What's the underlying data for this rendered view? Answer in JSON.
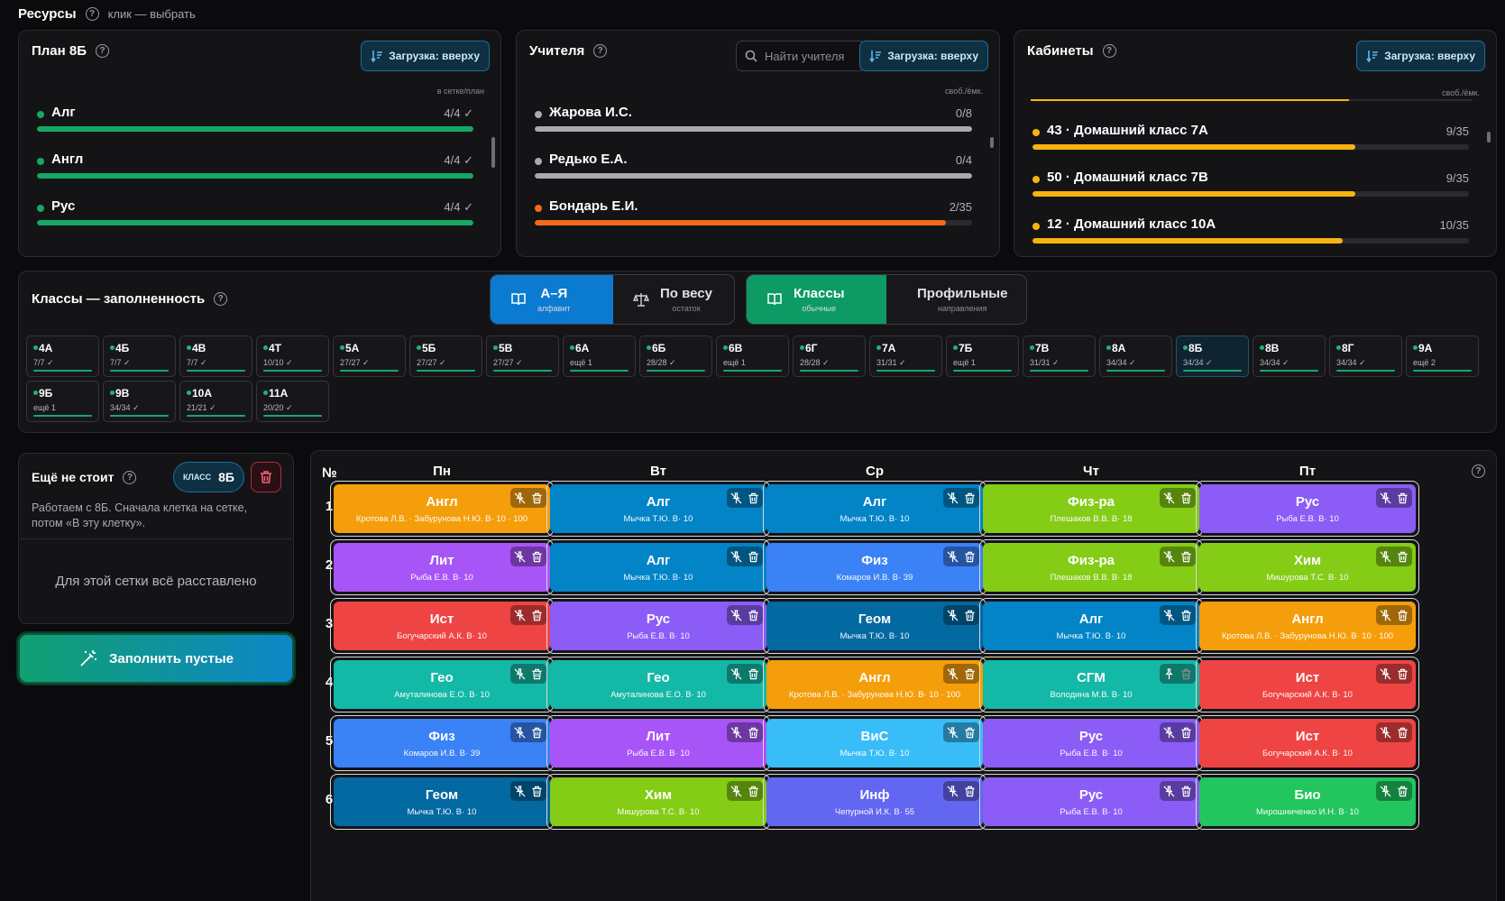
{
  "header": {
    "title": "Ресурсы",
    "hint": "клик — выбрать"
  },
  "load_label": "Загрузка: вверху",
  "plan": {
    "title": "План 8Б",
    "col": "в сетке/план",
    "items": [
      {
        "name": "Алг",
        "value": "4/4 ✓",
        "pct": 100,
        "color": "#15a865"
      },
      {
        "name": "Англ",
        "value": "4/4 ✓",
        "pct": 100,
        "color": "#15a865"
      },
      {
        "name": "Рус",
        "value": "4/4 ✓",
        "pct": 100,
        "color": "#15a865"
      }
    ]
  },
  "teachers": {
    "title": "Учителя",
    "search_placeholder": "Найти учителя",
    "col": "своб./ёмк.",
    "items": [
      {
        "name": "Жарова И.С.",
        "value": "0/8",
        "pct": 100,
        "color": "#a9a9b0"
      },
      {
        "name": "Редько Е.А.",
        "value": "0/4",
        "pct": 100,
        "color": "#a9a9b0"
      },
      {
        "name": "Бондарь Е.И.",
        "value": "2/35",
        "pct": 94,
        "color": "#f56a1a"
      }
    ]
  },
  "rooms": {
    "title": "Кабинеты",
    "col": "своб./ёмк.",
    "items": [
      {
        "name": "43 · Домашний класс 7А",
        "value": "9/35",
        "pct": 74,
        "color": "#f8b40e"
      },
      {
        "name": "50 · Домашний класс 7В",
        "value": "9/35",
        "pct": 74,
        "color": "#f8b40e"
      },
      {
        "name": "12 · Домашний класс 10А",
        "value": "10/35",
        "pct": 71,
        "color": "#f8b40e"
      }
    ]
  },
  "classes": {
    "title": "Классы — заполненность",
    "sort": [
      {
        "label": "А–Я",
        "sub": "алфавит",
        "active": true
      },
      {
        "label": "По весу",
        "sub": "остаток",
        "active": false
      }
    ],
    "filter": [
      {
        "label": "Классы",
        "sub": "обычные",
        "active": true
      },
      {
        "label": "Профильные",
        "sub": "направления",
        "active": false
      }
    ],
    "cards": [
      {
        "name": "4А",
        "stat": "7/7 ✓"
      },
      {
        "name": "4Б",
        "stat": "7/7 ✓"
      },
      {
        "name": "4В",
        "stat": "7/7 ✓"
      },
      {
        "name": "4Т",
        "stat": "10/10 ✓"
      },
      {
        "name": "5А",
        "stat": "27/27 ✓"
      },
      {
        "name": "5Б",
        "stat": "27/27 ✓"
      },
      {
        "name": "5В",
        "stat": "27/27 ✓"
      },
      {
        "name": "6А",
        "stat": "ещё 1"
      },
      {
        "name": "6Б",
        "stat": "28/28 ✓"
      },
      {
        "name": "6В",
        "stat": "ещё 1"
      },
      {
        "name": "6Г",
        "stat": "28/28 ✓"
      },
      {
        "name": "7А",
        "stat": "31/31 ✓"
      },
      {
        "name": "7Б",
        "stat": "ещё 1"
      },
      {
        "name": "7В",
        "stat": "31/31 ✓"
      },
      {
        "name": "8А",
        "stat": "34/34 ✓"
      },
      {
        "name": "8Б",
        "stat": "34/34 ✓",
        "selected": true
      },
      {
        "name": "8В",
        "stat": "34/34 ✓"
      },
      {
        "name": "8Г",
        "stat": "34/34 ✓"
      },
      {
        "name": "9А",
        "stat": "ещё 2"
      },
      {
        "name": "9Б",
        "stat": "ещё 1"
      },
      {
        "name": "9В",
        "stat": "34/34 ✓"
      },
      {
        "name": "10А",
        "stat": "21/21 ✓"
      },
      {
        "name": "11А",
        "stat": "20/20 ✓"
      }
    ]
  },
  "unplaced": {
    "title": "Ещё не стоит",
    "badge_key": "КЛАСС",
    "badge_value": "8Б",
    "desc": "Работаем с 8Б. Сначала клетка на сетке, потом «В эту клетку».",
    "empty": "Для этой сетки всё расставлено"
  },
  "fill_button": "Заполнить пустые",
  "grid": {
    "num": "№",
    "days": [
      "Пн",
      "Вт",
      "Ср",
      "Чт",
      "Пт"
    ],
    "rows": [
      "1",
      "2",
      "3",
      "4",
      "5",
      "6"
    ],
    "cells": [
      [
        {
          "s": "Англ",
          "t": "Кротова Л.В. · Забурунова Н.Ю. В· 10 · 100",
          "c": "#f59e0b"
        },
        {
          "s": "Алг",
          "t": "Мычка Т.Ю. В· 10",
          "c": "#0284c7"
        },
        {
          "s": "Алг",
          "t": "Мычка Т.Ю. В· 10",
          "c": "#0284c7"
        },
        {
          "s": "Физ-ра",
          "t": "Плешаков В.В. В· 18",
          "c": "#84cc16"
        },
        {
          "s": "Рус",
          "t": "Рыба Е.В. В· 10",
          "c": "#8b5cf6"
        }
      ],
      [
        {
          "s": "Лит",
          "t": "Рыба Е.В. В· 10",
          "c": "#a855f7"
        },
        {
          "s": "Алг",
          "t": "Мычка Т.Ю. В· 10",
          "c": "#0284c7"
        },
        {
          "s": "Физ",
          "t": "Комаров И.В. В· 39",
          "c": "#3b82f6"
        },
        {
          "s": "Физ-ра",
          "t": "Плешаков В.В. В· 18",
          "c": "#84cc16"
        },
        {
          "s": "Хим",
          "t": "Мишурова Т.С. В· 10",
          "c": "#84cc16"
        }
      ],
      [
        {
          "s": "Ист",
          "t": "Богучарский А.К. В· 10",
          "c": "#ef4444"
        },
        {
          "s": "Рус",
          "t": "Рыба Е.В. В· 10",
          "c": "#8b5cf6"
        },
        {
          "s": "Геом",
          "t": "Мычка Т.Ю. В· 10",
          "c": "#0369a1"
        },
        {
          "s": "Алг",
          "t": "Мычка Т.Ю. В· 10",
          "c": "#0284c7"
        },
        {
          "s": "Англ",
          "t": "Кротова Л.В. · Забурунова Н.Ю. В· 10 · 100",
          "c": "#f59e0b"
        }
      ],
      [
        {
          "s": "Гео",
          "t": "Амуталинова Е.О. В· 10",
          "c": "#14b8a6"
        },
        {
          "s": "Гео",
          "t": "Амуталинова Е.О. В· 10",
          "c": "#14b8a6"
        },
        {
          "s": "Англ",
          "t": "Кротова Л.В. · Забурунова Н.Ю. В· 10 · 100",
          "c": "#f59e0b"
        },
        {
          "s": "СГМ",
          "t": "Володина М.В. В· 10",
          "c": "#14b8a6",
          "pinned": true
        },
        {
          "s": "Ист",
          "t": "Богучарский А.К. В· 10",
          "c": "#ef4444"
        }
      ],
      [
        {
          "s": "Физ",
          "t": "Комаров И.В. В· 39",
          "c": "#3b82f6"
        },
        {
          "s": "Лит",
          "t": "Рыба Е.В. В· 10",
          "c": "#a855f7"
        },
        {
          "s": "ВиС",
          "t": "Мычка Т.Ю. В· 10",
          "c": "#38bdf8"
        },
        {
          "s": "Рус",
          "t": "Рыба Е.В. В· 10",
          "c": "#8b5cf6"
        },
        {
          "s": "Ист",
          "t": "Богучарский А.К. В· 10",
          "c": "#ef4444"
        }
      ],
      [
        {
          "s": "Геом",
          "t": "Мычка Т.Ю. В· 10",
          "c": "#0369a1"
        },
        {
          "s": "Хим",
          "t": "Мишурова Т.С. В· 10",
          "c": "#84cc16"
        },
        {
          "s": "Инф",
          "t": "Чепурной И.К. В· 55",
          "c": "#6366f1"
        },
        {
          "s": "Рус",
          "t": "Рыба Е.В. В· 10",
          "c": "#8b5cf6"
        },
        {
          "s": "Био",
          "t": "Мирошниченко И.Н. В· 10",
          "c": "#22c55e"
        }
      ]
    ]
  }
}
